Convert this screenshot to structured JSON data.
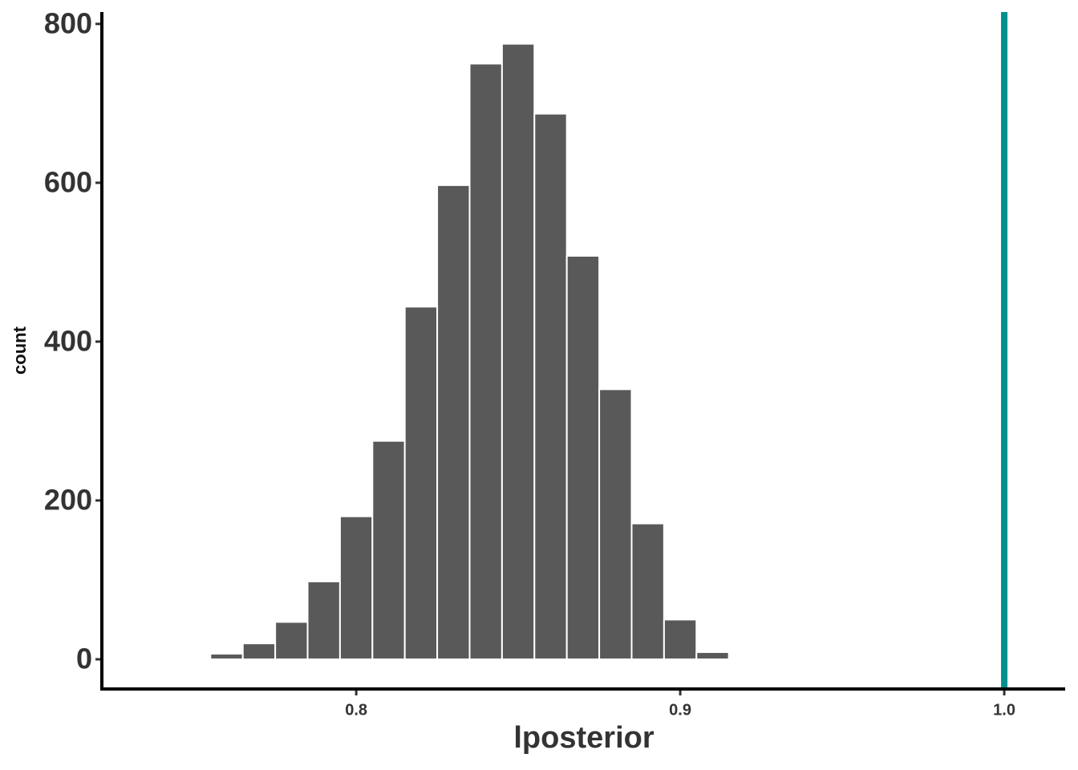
{
  "chart_data": {
    "type": "histogram",
    "x_label": "lposterior",
    "y_label": "count",
    "bins": [
      0.745,
      0.755,
      0.765,
      0.775,
      0.785,
      0.795,
      0.805,
      0.815,
      0.825,
      0.835,
      0.845,
      0.855,
      0.865,
      0.875,
      0.885,
      0.895,
      0.905,
      0.915,
      0.925
    ],
    "values": [
      2,
      7,
      20,
      47,
      98,
      180,
      275,
      444,
      597,
      750,
      775,
      687,
      508,
      340,
      171,
      50,
      9,
      2
    ],
    "color": "#595959",
    "vlines": [
      {
        "x": 1,
        "color": "#009191"
      }
    ],
    "xlim": [
      0.7215,
      1.0188
    ],
    "xticks": [
      0.8,
      0.9,
      {
        "value": 1,
        "label": "1.0"
      }
    ],
    "ylim": [
      -37.4,
      815
    ],
    "yticks": [
      0,
      200,
      400,
      600,
      800
    ]
  }
}
